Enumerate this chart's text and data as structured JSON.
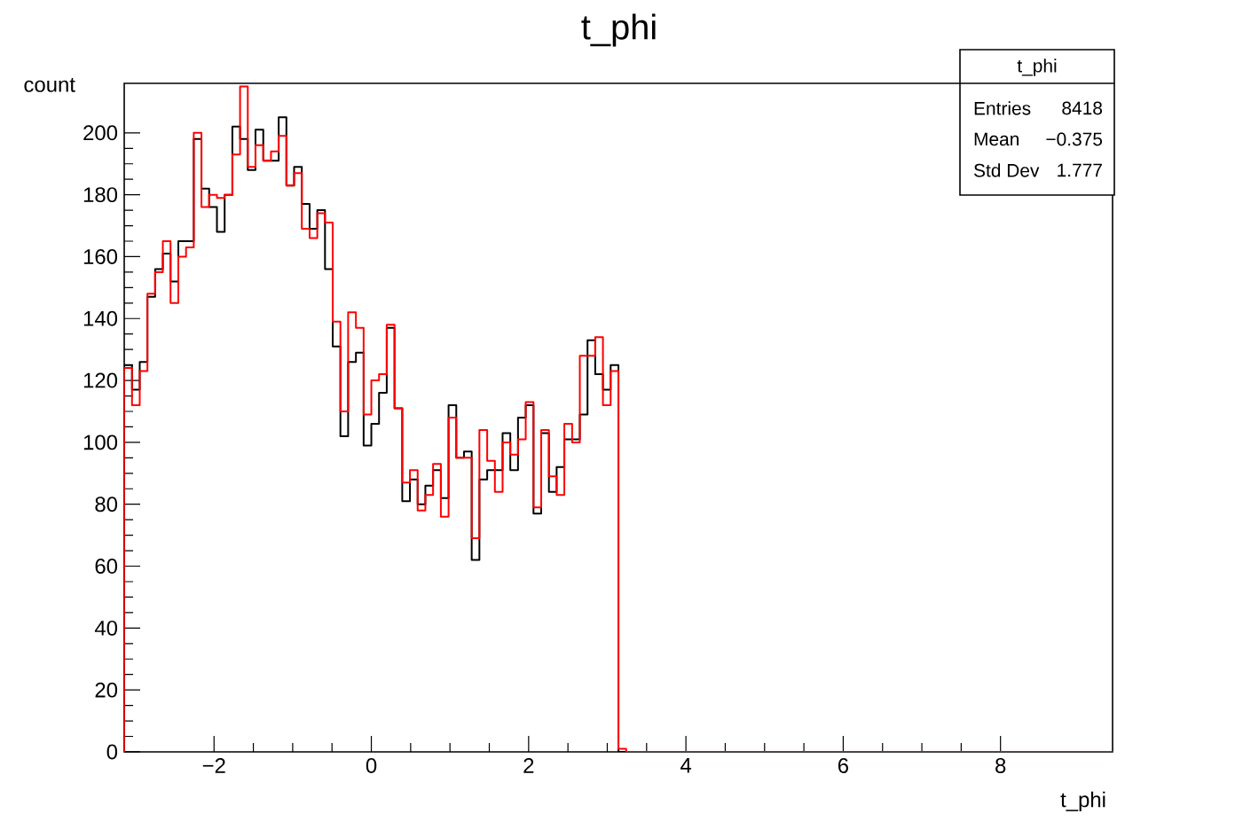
{
  "chart_data": {
    "type": "histogram",
    "title": "t_phi",
    "xlabel": "t_phi",
    "ylabel": "count",
    "bins": [
      -3.142,
      -3.043,
      -2.945,
      -2.847,
      -2.749,
      -2.651,
      -2.553,
      -2.454,
      -2.356,
      -2.258,
      -2.16,
      -2.062,
      -1.963,
      -1.865,
      -1.767,
      -1.669,
      -1.571,
      -1.473,
      -1.374,
      -1.276,
      -1.178,
      -1.08,
      -0.982,
      -0.884,
      -0.785,
      -0.687,
      -0.589,
      -0.491,
      -0.393,
      -0.295,
      -0.196,
      -0.098,
      0,
      0.098,
      0.196,
      0.295,
      0.393,
      0.491,
      0.589,
      0.687,
      0.785,
      0.884,
      0.982,
      1.08,
      1.178,
      1.276,
      1.374,
      1.473,
      1.571,
      1.669,
      1.767,
      1.865,
      1.963,
      2.062,
      2.16,
      2.258,
      2.356,
      2.454,
      2.553,
      2.651,
      2.749,
      2.847,
      2.945,
      3.043,
      3.142,
      3.24,
      9.425
    ],
    "series": [
      {
        "color": "#000000",
        "values": [
          125,
          117,
          126,
          147,
          156,
          161,
          152,
          165,
          165,
          198,
          182,
          176,
          168,
          180,
          202,
          198,
          188,
          201,
          191,
          191,
          205,
          183,
          189,
          177,
          169,
          175,
          156,
          131,
          102,
          126,
          129,
          99,
          106,
          116,
          137,
          111,
          81,
          88,
          80,
          86,
          91,
          82,
          112,
          95,
          97,
          62,
          88,
          91,
          91,
          103,
          91,
          108,
          112,
          77,
          103,
          84,
          92,
          101,
          101,
          109,
          133,
          122,
          117,
          125,
          0,
          0
        ]
      },
      {
        "color": "#ff0000",
        "values": [
          124,
          112,
          123,
          148,
          155,
          165,
          145,
          160,
          163,
          200,
          176,
          180,
          179,
          180,
          193,
          215,
          189,
          196,
          191,
          194,
          199,
          183,
          187,
          169,
          166,
          174,
          171,
          139,
          110,
          142,
          137,
          109,
          120,
          122,
          138,
          111,
          87,
          91,
          78,
          83,
          93,
          76,
          108,
          95,
          95,
          69,
          104,
          94,
          84,
          100,
          96,
          101,
          113,
          79,
          104,
          89,
          83,
          106,
          100,
          128,
          128,
          134,
          112,
          123,
          1,
          0
        ]
      }
    ],
    "xlim": [
      -3.142,
      9.425
    ],
    "ylim": [
      0,
      216
    ],
    "xticks": [
      {
        "value": -2,
        "label": "−2"
      },
      0,
      2,
      4,
      6,
      8
    ],
    "yticks": [
      0,
      20,
      40,
      60,
      80,
      100,
      120,
      140,
      160,
      180,
      200
    ],
    "annotations": [
      "t_phi",
      "Entries",
      "8418",
      "Mean",
      "−0.375",
      "Std Dev",
      "1.777"
    ]
  }
}
